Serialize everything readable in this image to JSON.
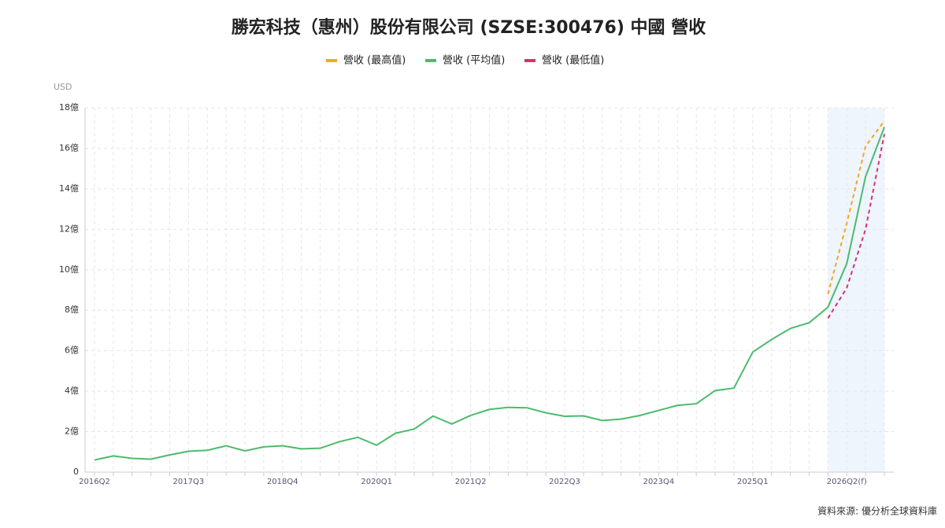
{
  "chart_data": {
    "type": "line",
    "title": "勝宏科技（惠州）股份有限公司 (SZSE:300476) 中國 營收",
    "y_unit": "USD",
    "source": "資料來源: 優分析全球資料庫",
    "categories": [
      "2016Q2",
      null,
      null,
      null,
      null,
      "2017Q3",
      null,
      null,
      null,
      null,
      "2018Q4",
      null,
      null,
      null,
      null,
      "2020Q1",
      null,
      null,
      null,
      null,
      "2021Q2",
      null,
      null,
      null,
      null,
      "2022Q3",
      null,
      null,
      null,
      null,
      "2023Q4",
      null,
      null,
      null,
      null,
      "2025Q1",
      null,
      null,
      null,
      null,
      "2026Q2(f)",
      null,
      null
    ],
    "series": [
      {
        "name": "營收 (最高值)",
        "color": "#f5a81c",
        "dashed": true,
        "values": [
          null,
          null,
          null,
          null,
          null,
          null,
          null,
          null,
          null,
          null,
          null,
          null,
          null,
          null,
          null,
          null,
          null,
          null,
          null,
          null,
          null,
          null,
          null,
          null,
          null,
          null,
          null,
          null,
          null,
          null,
          null,
          null,
          null,
          null,
          null,
          null,
          null,
          null,
          null,
          8.8,
          12.3,
          16.1,
          17.35
        ]
      },
      {
        "name": "營收 (平均值)",
        "color": "#4cbb6c",
        "dashed": false,
        "values": [
          0.6,
          0.8,
          0.68,
          0.64,
          0.85,
          1.03,
          1.08,
          1.3,
          1.05,
          1.25,
          1.3,
          1.15,
          1.18,
          1.5,
          1.72,
          1.33,
          1.92,
          2.13,
          2.77,
          2.38,
          2.8,
          3.1,
          3.2,
          3.18,
          2.93,
          2.76,
          2.78,
          2.55,
          2.62,
          2.8,
          3.05,
          3.3,
          3.38,
          4.03,
          4.15,
          5.93,
          6.55,
          7.1,
          7.38,
          8.15,
          10.3,
          14.6,
          17.05
        ]
      },
      {
        "name": "營收 (最低值)",
        "color": "#d6336c",
        "dashed": true,
        "values": [
          null,
          null,
          null,
          null,
          null,
          null,
          null,
          null,
          null,
          null,
          null,
          null,
          null,
          null,
          null,
          null,
          null,
          null,
          null,
          null,
          null,
          null,
          null,
          null,
          null,
          null,
          null,
          null,
          null,
          null,
          null,
          null,
          null,
          null,
          null,
          null,
          null,
          null,
          null,
          7.6,
          9.1,
          12.0,
          16.7
        ]
      }
    ],
    "ylim": [
      0,
      18
    ],
    "yticks": [
      0,
      {
        "value": 2,
        "label": "2億"
      },
      {
        "value": 4,
        "label": "4億"
      },
      {
        "value": 6,
        "label": "6億"
      },
      {
        "value": 8,
        "label": "8億"
      },
      {
        "value": 10,
        "label": "10億"
      },
      {
        "value": 12,
        "label": "12億"
      },
      {
        "value": 14,
        "label": "14億"
      },
      {
        "value": 16,
        "label": "16億"
      },
      {
        "value": 18,
        "label": "18億"
      }
    ],
    "grid": true,
    "forecast_shading": true
  }
}
